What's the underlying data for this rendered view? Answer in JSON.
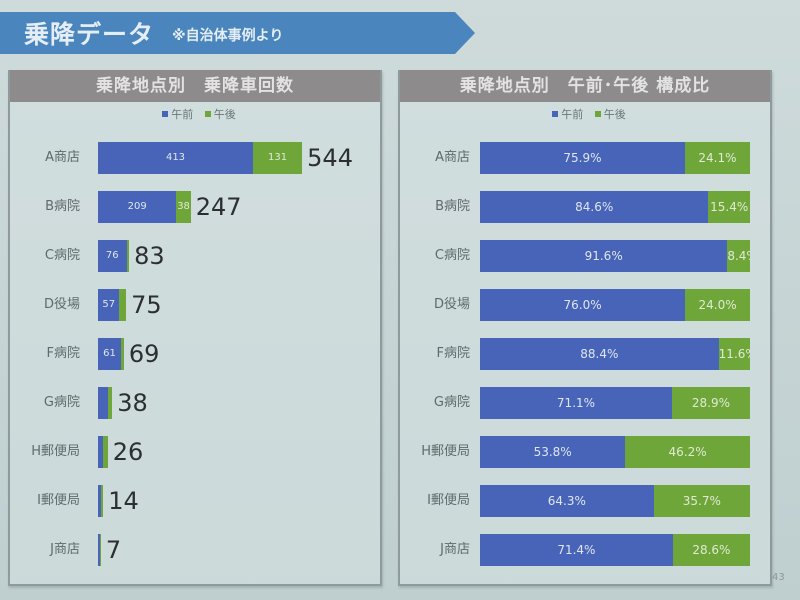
{
  "header": {
    "title": "乗降データ",
    "note": "※自治体事例より",
    "banner_color": "#4a86bd"
  },
  "legend": {
    "am_label": "午前",
    "pm_label": "午後",
    "am_color": "#4764b8",
    "pm_color": "#6fa63a"
  },
  "left_chart": {
    "title": "乗降地点別　乗降車回数",
    "rows": [
      {
        "cat": "A商店",
        "am": "413",
        "pm": "131",
        "total": "544"
      },
      {
        "cat": "B病院",
        "am": "209",
        "pm": "38",
        "total": "247"
      },
      {
        "cat": "C病院",
        "am": "76",
        "pm": "7",
        "total": "83"
      },
      {
        "cat": "D役場",
        "am": "57",
        "pm": "18",
        "total": "75"
      },
      {
        "cat": "F病院",
        "am": "61",
        "pm": "8",
        "total": "69"
      },
      {
        "cat": "G病院",
        "am": "27",
        "pm": "11",
        "total": "38"
      },
      {
        "cat": "H郵便局",
        "am": "14",
        "pm": "12",
        "total": "26"
      },
      {
        "cat": "I郵便局",
        "am": "9",
        "pm": "5",
        "total": "14"
      },
      {
        "cat": "J商店",
        "am": "5",
        "pm": "2",
        "total": "7"
      }
    ]
  },
  "right_chart": {
    "title": "乗降地点別　午前･午後 構成比",
    "rows": [
      {
        "cat": "A商店",
        "am": "75.9%",
        "pm": "24.1%"
      },
      {
        "cat": "B病院",
        "am": "84.6%",
        "pm": "15.4%"
      },
      {
        "cat": "C病院",
        "am": "91.6%",
        "pm": "8.4%"
      },
      {
        "cat": "D役場",
        "am": "76.0%",
        "pm": "24.0%"
      },
      {
        "cat": "F病院",
        "am": "88.4%",
        "pm": "11.6%"
      },
      {
        "cat": "G病院",
        "am": "71.1%",
        "pm": "28.9%"
      },
      {
        "cat": "H郵便局",
        "am": "53.8%",
        "pm": "46.2%"
      },
      {
        "cat": "I郵便局",
        "am": "64.3%",
        "pm": "35.7%"
      },
      {
        "cat": "J商店",
        "am": "71.4%",
        "pm": "28.6%"
      }
    ]
  },
  "page_number": "43",
  "chart_data": [
    {
      "type": "bar",
      "orientation": "horizontal",
      "stacked": true,
      "title": "乗降地点別　乗降車回数",
      "categories": [
        "A商店",
        "B病院",
        "C病院",
        "D役場",
        "F病院",
        "G病院",
        "H郵便局",
        "I郵便局",
        "J商店"
      ],
      "series": [
        {
          "name": "午前",
          "color": "#4764b8",
          "values": [
            413,
            209,
            76,
            57,
            61,
            27,
            14,
            9,
            5
          ]
        },
        {
          "name": "午後",
          "color": "#6fa63a",
          "values": [
            131,
            38,
            7,
            18,
            8,
            11,
            12,
            5,
            2
          ]
        }
      ],
      "totals": [
        544,
        247,
        83,
        75,
        69,
        38,
        26,
        14,
        7
      ],
      "legend_position": "top",
      "grid": false
    },
    {
      "type": "bar",
      "orientation": "horizontal",
      "stacked": true,
      "percent": true,
      "title": "乗降地点別　午前･午後 構成比",
      "categories": [
        "A商店",
        "B病院",
        "C病院",
        "D役場",
        "F病院",
        "G病院",
        "H郵便局",
        "I郵便局",
        "J商店"
      ],
      "series": [
        {
          "name": "午前",
          "color": "#4764b8",
          "values": [
            75.9,
            84.6,
            91.6,
            76.0,
            88.4,
            71.1,
            53.8,
            64.3,
            71.4
          ]
        },
        {
          "name": "午後",
          "color": "#6fa63a",
          "values": [
            24.1,
            15.4,
            8.4,
            24.0,
            11.6,
            28.9,
            46.2,
            35.7,
            28.6
          ]
        }
      ],
      "legend_position": "top",
      "grid": false,
      "xlim": [
        0,
        100
      ]
    }
  ]
}
